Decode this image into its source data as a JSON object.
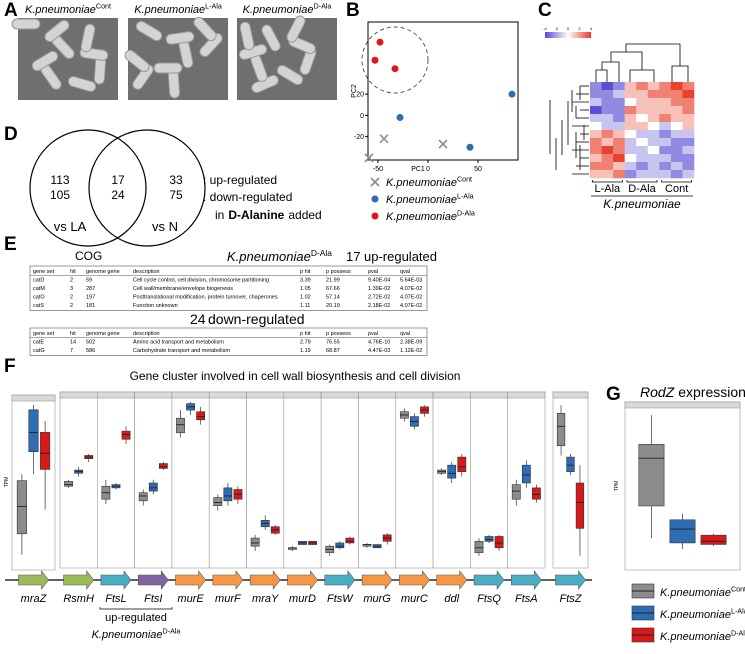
{
  "panel_labels": [
    "A",
    "B",
    "C",
    "D",
    "E",
    "F",
    "G"
  ],
  "panel_a": {
    "images": [
      {
        "name": "K.pneumoniae",
        "sup": "Cont"
      },
      {
        "name": "K.pneumoniae",
        "sup": "L-Ala"
      },
      {
        "name": "K.pneumoniae",
        "sup": "D-Ala"
      }
    ]
  },
  "panel_b": {
    "type": "scatter",
    "x_label": "PC1",
    "y_label": "PC2",
    "xlim": [
      -60,
      90
    ],
    "ylim": [
      -42,
      88
    ],
    "xticks": [
      -50,
      0,
      50
    ],
    "yticks": [
      -20,
      0,
      20
    ],
    "series": [
      {
        "name": "K.pneumoniae",
        "sup": "Cont",
        "color": "#8c8c8c",
        "marker": "x",
        "x": [
          -44,
          15,
          -59
        ],
        "y": [
          -22,
          -27,
          -40
        ]
      },
      {
        "name": "K.pneumoniae",
        "sup": "L-Ala",
        "color": "#2e6db4",
        "marker": "circle",
        "x": [
          84,
          -28,
          42
        ],
        "y": [
          20,
          -2,
          -30
        ]
      },
      {
        "name": "K.pneumoniae",
        "sup": "D-Ala",
        "color": "#e0161b",
        "marker": "circle",
        "x": [
          -48,
          -53,
          -33
        ],
        "y": [
          69,
          52,
          44
        ]
      }
    ]
  },
  "panel_c": {
    "type": "heatmap",
    "scale_ticks": [
      -4,
      -2,
      0,
      2,
      4
    ],
    "color_low": "#5b4fd1",
    "color_high": "#e8412c",
    "columns": [
      "L-Ala",
      "D-Ala",
      "Cont"
    ],
    "species": "K.pneumoniae",
    "matrix": [
      [
        -2,
        -3,
        -2,
        1,
        2,
        1,
        2,
        3,
        2
      ],
      [
        -2,
        -2,
        -1,
        1,
        1,
        2,
        2,
        2,
        3
      ],
      [
        -1,
        -2,
        -2,
        0,
        1,
        1,
        1,
        2,
        2
      ],
      [
        -3,
        -2,
        -2,
        2,
        1,
        1,
        1,
        1,
        2
      ],
      [
        -1,
        -1,
        -2,
        1,
        0,
        1,
        2,
        1,
        1
      ],
      [
        0,
        -1,
        -1,
        1,
        1,
        0,
        -1,
        0,
        1
      ],
      [
        1,
        2,
        1,
        0,
        -1,
        -1,
        -2,
        -1,
        -1
      ],
      [
        2,
        1,
        2,
        -1,
        0,
        -1,
        -1,
        -2,
        -2
      ],
      [
        2,
        3,
        2,
        -1,
        -1,
        0,
        -2,
        -2,
        -1
      ],
      [
        1,
        2,
        3,
        0,
        -1,
        -1,
        -1,
        -2,
        -2
      ],
      [
        2,
        2,
        1,
        -1,
        -2,
        -1,
        -2,
        -1,
        -2
      ],
      [
        1,
        1,
        2,
        -2,
        -1,
        -1,
        -1,
        -2,
        -1
      ]
    ]
  },
  "panel_d": {
    "left": {
      "up": 113,
      "down": 105,
      "label": "vs LA"
    },
    "middle": {
      "up": 17,
      "down": 24
    },
    "right": {
      "up": 33,
      "down": 75,
      "label": "vs N"
    },
    "legend_up": ": up-regulated",
    "legend_down": ": down-regulated",
    "note_prefix": "in",
    "note_bold": "D-Alanine",
    "note_suffix": "added"
  },
  "panel_e": {
    "cog": "COG",
    "species": "K.pneumoniae",
    "sup": "D-Ala",
    "up_count": "17",
    "up_label": "up-regulated",
    "columns": [
      "gene set",
      "hit",
      "genome gene",
      "description",
      "p hit",
      "p possess",
      "pval",
      "qval"
    ],
    "up_rows": [
      [
        "catD",
        "2",
        "59",
        "Cell cycle control, cell division, chromosome partitioning",
        "3.39",
        "21.99",
        "9.40E-04",
        "5.64E-03"
      ],
      [
        "catM",
        "3",
        "287",
        "Cell wall/membrane/envelope biogenesis",
        "1.05",
        "67.66",
        "1.39E-02",
        "4.07E-02"
      ],
      [
        "catO",
        "2",
        "197",
        "Posttranslational modification, protein turnover, chaperones",
        "1.02",
        "57.14",
        "2.72E-02",
        "4.07E-02"
      ],
      [
        "catS",
        "2",
        "181",
        "Function unknown",
        "1.11",
        "20.19",
        "2.18E-02",
        "4.07E-02"
      ]
    ],
    "down_count": "24",
    "down_label": "down-regulated",
    "down_rows": [
      [
        "catE",
        "14",
        "502",
        "Amino acid transport and metabolism",
        "2.79",
        "76.55",
        "4.76E-10",
        "2.38E-09"
      ],
      [
        "catG",
        "7",
        "586",
        "Carbohydrate transport and metabolism",
        "1.19",
        "68.87",
        "4.47E-03",
        "1.12E-02"
      ]
    ]
  },
  "panel_f": {
    "type": "boxplot",
    "title": "Gene cluster involved in cell wall biosynthesis and cell division",
    "y_label": "TPM",
    "group_colors": [
      "#8c8c8c",
      "#2e6db4",
      "#d7191c"
    ],
    "genes": [
      {
        "name": "mraZ",
        "color": "#9bbb59",
        "box": [
          [
            7,
            20,
            37,
            53,
            57
          ],
          [
            57,
            71,
            83,
            97,
            100
          ],
          [
            35,
            60,
            70,
            83,
            90
          ]
        ]
      },
      {
        "name": "RsmH",
        "color": "#9bbb59",
        "box": [
          [
            47,
            48,
            49,
            51,
            52
          ],
          [
            54,
            56,
            57,
            58,
            60
          ],
          [
            63,
            65,
            66,
            67,
            68
          ]
        ]
      },
      {
        "name": "FtsL",
        "color": "#4bacc6",
        "box": [
          [
            37,
            40,
            44,
            48,
            52
          ],
          [
            46,
            47,
            48,
            49,
            50
          ],
          [
            74,
            77,
            80,
            82,
            85
          ]
        ]
      },
      {
        "name": "FtsI",
        "color": "#8064a2",
        "box": [
          [
            36,
            39,
            42,
            44,
            46
          ],
          [
            43,
            45,
            47,
            50,
            52
          ],
          [
            58,
            59,
            60,
            62,
            63
          ]
        ]
      },
      {
        "name": "murE",
        "color": "#f79646",
        "box": [
          [
            78,
            81,
            86,
            90,
            95
          ],
          [
            92,
            95,
            97,
            99,
            100
          ],
          [
            86,
            89,
            91,
            94,
            97
          ]
        ]
      },
      {
        "name": "murF",
        "color": "#f79646",
        "box": [
          [
            33,
            36,
            38,
            41,
            43
          ],
          [
            36,
            39,
            42,
            47,
            50
          ],
          [
            37,
            40,
            43,
            46,
            48
          ]
        ]
      },
      {
        "name": "mraY",
        "color": "#f79646",
        "box": [
          [
            8,
            11,
            13,
            16,
            18
          ],
          [
            21,
            23,
            25,
            27,
            30
          ],
          [
            18,
            19,
            21,
            23,
            24
          ]
        ]
      },
      {
        "name": "murD",
        "color": "#f79646",
        "box": [
          [
            8,
            9,
            10,
            10,
            11
          ],
          [
            12,
            12,
            13,
            14,
            14
          ],
          [
            12,
            12,
            13,
            14,
            14
          ]
        ]
      },
      {
        "name": "FtsW",
        "color": "#4bacc6",
        "box": [
          [
            5,
            7,
            9,
            11,
            12
          ],
          [
            9,
            10,
            11,
            13,
            14
          ],
          [
            12,
            13,
            14,
            16,
            17
          ]
        ]
      },
      {
        "name": "murG",
        "color": "#f79646",
        "box": [
          [
            10,
            11,
            12,
            12,
            13
          ],
          [
            10,
            10,
            11,
            12,
            12
          ],
          [
            12,
            14,
            16,
            18,
            19
          ]
        ]
      },
      {
        "name": "murC",
        "color": "#f79646",
        "box": [
          [
            88,
            90,
            92,
            94,
            96
          ],
          [
            83,
            85,
            88,
            91,
            93
          ],
          [
            91,
            93,
            95,
            97,
            98
          ]
        ]
      },
      {
        "name": "ddl",
        "color": "#f79646",
        "box": [
          [
            55,
            56,
            57,
            58,
            59
          ],
          [
            50,
            53,
            56,
            61,
            63
          ],
          [
            54,
            57,
            60,
            66,
            68
          ]
        ]
      },
      {
        "name": "FtsQ",
        "color": "#4bacc6",
        "box": [
          [
            5,
            7,
            10,
            14,
            16
          ],
          [
            13,
            14,
            15,
            17,
            18
          ],
          [
            8,
            10,
            13,
            17,
            18
          ]
        ]
      },
      {
        "name": "FtsA",
        "color": "#4bacc6",
        "box": [
          [
            36,
            40,
            45,
            49,
            52
          ],
          [
            47,
            50,
            55,
            61,
            64
          ],
          [
            38,
            40,
            43,
            47,
            49
          ]
        ]
      },
      {
        "name": "FtsZ",
        "color": "#4bacc6",
        "box": [
          [
            67,
            73,
            85,
            93,
            98
          ],
          [
            55,
            57,
            61,
            66,
            68
          ],
          [
            5,
            22,
            38,
            50,
            61
          ]
        ]
      }
    ],
    "annotation": "up-regulated",
    "annotation_species": "K.pneumoniae",
    "annotation_sup": "D-Ala"
  },
  "panel_g": {
    "type": "boxplot",
    "title_gene": "RodZ",
    "title_text": "expression",
    "y_label": "TPM",
    "box": [
      [
        18,
        39,
        70,
        79,
        98
      ],
      [
        11,
        15,
        24,
        30,
        34
      ],
      [
        13,
        14,
        16,
        20,
        21
      ]
    ],
    "legend": [
      {
        "name": "K.pneumoniae",
        "sup": "Cont",
        "color": "#8c8c8c"
      },
      {
        "name": "K.pneumoniae",
        "sup": "L-Ala",
        "color": "#2e6db4"
      },
      {
        "name": "K.pneumoniae",
        "sup": "D-Ala",
        "color": "#d7191c"
      }
    ]
  }
}
